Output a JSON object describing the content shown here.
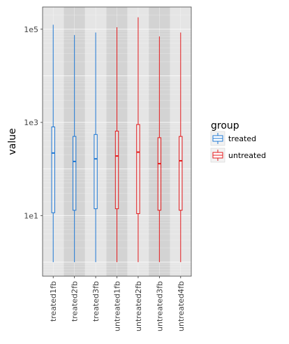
{
  "chart_data": {
    "type": "boxplot",
    "ylabel": "value",
    "xlabel": "",
    "yscale": "log10",
    "ylim": [
      0.5,
      300000
    ],
    "yticks": [
      {
        "value": 10,
        "label": "1e1"
      },
      {
        "value": 1000,
        "label": "1e3"
      },
      {
        "value": 100000,
        "label": "1e5"
      }
    ],
    "grid": true,
    "legend": {
      "title": "group",
      "position": "right",
      "entries": [
        {
          "label": "treated",
          "color": "#1f78d4"
        },
        {
          "label": "untreated",
          "color": "#e41a1c"
        }
      ]
    },
    "boxes": [
      {
        "category": "treated1fb",
        "group": "treated",
        "min": 1,
        "q1": 11.5,
        "median": 220,
        "q3": 800,
        "max": 125000
      },
      {
        "category": "treated2fb",
        "group": "treated",
        "min": 1,
        "q1": 13,
        "median": 145,
        "q3": 500,
        "max": 75000
      },
      {
        "category": "treated3fb",
        "group": "treated",
        "min": 1,
        "q1": 14,
        "median": 165,
        "q3": 550,
        "max": 85000
      },
      {
        "category": "untreated1fb",
        "group": "untreated",
        "min": 1,
        "q1": 14,
        "median": 190,
        "q3": 650,
        "max": 110000
      },
      {
        "category": "untreated2fb",
        "group": "untreated",
        "min": 1,
        "q1": 11,
        "median": 230,
        "q3": 900,
        "max": 180000
      },
      {
        "category": "untreated3fb",
        "group": "untreated",
        "min": 1,
        "q1": 13,
        "median": 130,
        "q3": 470,
        "max": 70000
      },
      {
        "category": "untreated4fb",
        "group": "untreated",
        "min": 1,
        "q1": 13,
        "median": 150,
        "q3": 500,
        "max": 85000
      }
    ]
  }
}
